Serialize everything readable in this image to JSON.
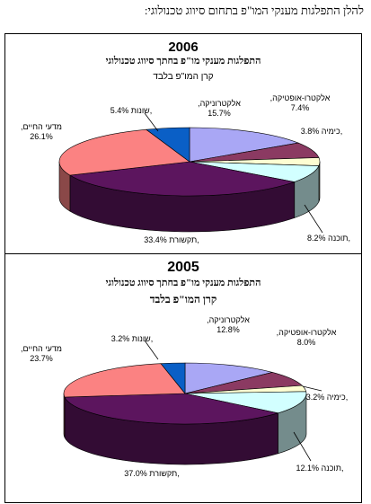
{
  "heading": "להלן התפלגות מענקי המו\"פ בתחום סיווג טכנולוגי:",
  "colors": {
    "electronics": "#a9a7f5",
    "electro_optics": "#8b3a62",
    "chemistry": "#fefed2",
    "software": "#d2ffff",
    "communications": "#5c155e",
    "life_sciences": "#fb8282",
    "misc": "#0a5fc6"
  },
  "chart_data": [
    {
      "type": "pie",
      "year_label": "2006",
      "title": "התפלגות מענקי מו\"פ בחתך סיווג טכנולוגי",
      "subtitle": "קרן המו\"פ בלבד",
      "series": [
        {
          "key": "electronics",
          "name": "אלקטרוניקה,",
          "label": "15.7%",
          "value": 15.7
        },
        {
          "key": "electro_optics",
          "name": "אלקטרו-אופטיקה,",
          "label": "7.4%",
          "value": 7.4
        },
        {
          "key": "chemistry",
          "name": "כימיה,",
          "label": "3.8%",
          "value": 3.8
        },
        {
          "key": "software",
          "name": "תוכנה,",
          "label": "8.2%",
          "value": 8.2
        },
        {
          "key": "communications",
          "name": "תקשורת,",
          "label": "33.4%",
          "value": 33.4
        },
        {
          "key": "life_sciences",
          "name": "מדעי החיים,",
          "label": "26.1%",
          "value": 26.1
        },
        {
          "key": "misc",
          "name": "שונות,",
          "label": "5.4%",
          "value": 5.4
        }
      ]
    },
    {
      "type": "pie",
      "year_label": "2005",
      "title": "התפלגות מענקי מו\"פ בחתך סיווג טכנולוגי",
      "subtitle": "קרן המו\"פ בלבד",
      "series": [
        {
          "key": "electronics",
          "name": "אלקטרוניקה,",
          "label": "12.8%",
          "value": 12.8
        },
        {
          "key": "electro_optics",
          "name": "אלקטרו-אופטיקה,",
          "label": "8.0%",
          "value": 8.0
        },
        {
          "key": "chemistry",
          "name": "כימיה,",
          "label": "3.2%",
          "value": 3.2
        },
        {
          "key": "software",
          "name": "תוכנה,",
          "label": "12.1%",
          "value": 12.1
        },
        {
          "key": "communications",
          "name": "תקשורת,",
          "label": "37.0%",
          "value": 37.0
        },
        {
          "key": "life_sciences",
          "name": "מדעי החיים,",
          "label": "23.7%",
          "value": 23.7
        },
        {
          "key": "misc",
          "name": "שונות,",
          "label": "3.2%",
          "value": 3.2
        }
      ]
    }
  ]
}
